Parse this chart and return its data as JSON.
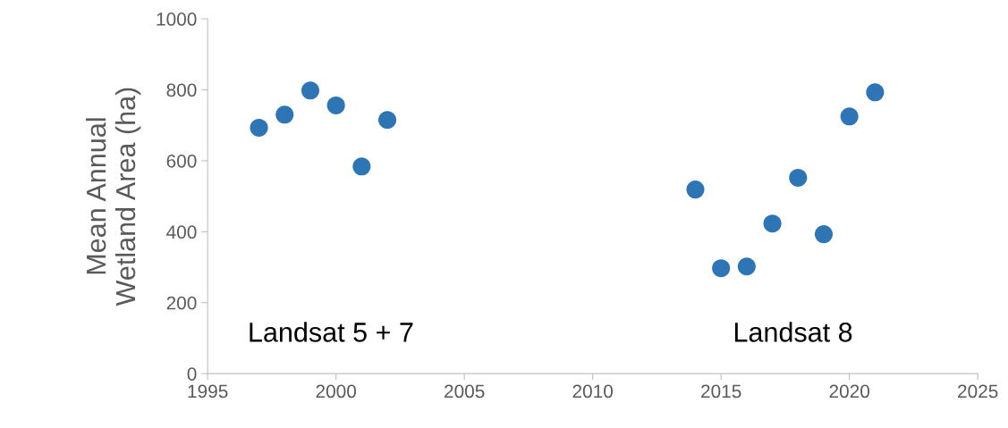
{
  "chart_data": {
    "type": "scatter",
    "ylabel": "Mean Annual\nWetland Area (ha)",
    "xlim": [
      1995,
      2025
    ],
    "xticks": [
      1995,
      2000,
      2005,
      2010,
      2015,
      2020,
      2025
    ],
    "ylim": [
      0,
      1000
    ],
    "yticks": [
      0,
      200,
      400,
      600,
      800,
      1000
    ],
    "grid": false,
    "marker": "circle",
    "annotations": [
      "Landsat 5 + 7",
      "Landsat 8"
    ],
    "series": [
      {
        "color": "#2e75b6",
        "x": [
          1997,
          1998,
          1999,
          2000,
          2001,
          2002
        ],
        "values": [
          693,
          730,
          798,
          756,
          584,
          715
        ]
      },
      {
        "color": "#2e75b6",
        "x": [
          2014,
          2015,
          2016,
          2017,
          2018,
          2019,
          2020,
          2021
        ],
        "values": [
          519,
          297,
          302,
          423,
          552,
          393,
          725,
          793
        ]
      }
    ]
  }
}
